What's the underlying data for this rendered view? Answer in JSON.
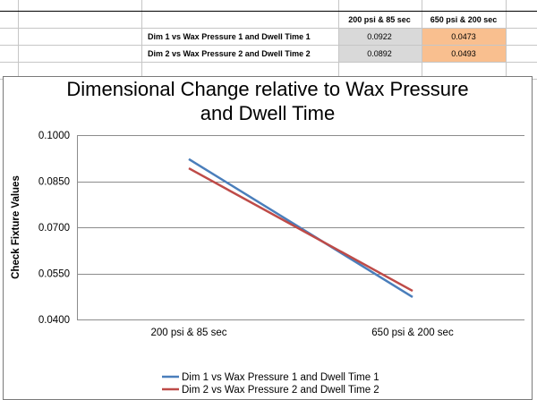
{
  "table": {
    "headers": [
      "200 psi & 85 sec",
      "650 psi & 200 sec"
    ],
    "rows": [
      {
        "label": "Dim 1 vs Wax Pressure 1 and Dwell Time 1",
        "values": [
          "0.0922",
          "0.0473"
        ]
      },
      {
        "label": "Dim 2 vs Wax Pressure 2 and Dwell Time 2",
        "values": [
          "0.0892",
          "0.0493"
        ]
      }
    ],
    "colors": {
      "gray_cell": "#d9d9d9",
      "orange_cell": "#f9bf8f"
    }
  },
  "chart_data": {
    "type": "line",
    "title_lines": [
      "Dimensional Change relative to Wax Pressure",
      "and Dwell Time"
    ],
    "categories": [
      "200 psi & 85 sec",
      "650 psi & 200 sec"
    ],
    "ylabel": "Check Fixture Values",
    "xlabel": "",
    "ylim": [
      0.04,
      0.1
    ],
    "yticks": [
      "0.1000",
      "0.0850",
      "0.0700",
      "0.0550",
      "0.0400"
    ],
    "ytick_values": [
      0.1,
      0.085,
      0.07,
      0.055,
      0.04
    ],
    "grid": true,
    "legend_placement": "bottom",
    "series": [
      {
        "name": "Dim 1 vs Wax Pressure 1 and Dwell Time 1",
        "values": [
          0.0922,
          0.0473
        ],
        "color": "#4a7ebb"
      },
      {
        "name": "Dim 2 vs Wax Pressure 2 and Dwell Time 2",
        "values": [
          0.0892,
          0.0493
        ],
        "color": "#be4b48"
      }
    ]
  }
}
